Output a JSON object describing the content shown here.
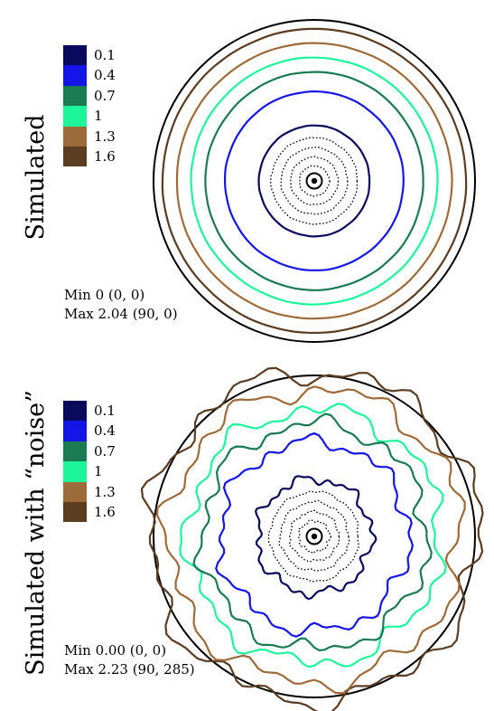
{
  "chart_data": [
    {
      "type": "polar-contour",
      "ylabel": "Simulated",
      "levels": [
        0.1,
        0.4,
        0.7,
        1,
        1.3,
        1.6
      ],
      "legend": [
        {
          "label": "0.1",
          "color": "#0a0a5c"
        },
        {
          "label": "0.4",
          "color": "#1515e8"
        },
        {
          "label": "0.7",
          "color": "#1a7a52"
        },
        {
          "label": "1",
          "color": "#1df59a"
        },
        {
          "label": "1.3",
          "color": "#9d6b3a"
        },
        {
          "label": "1.6",
          "color": "#5a3d22"
        }
      ],
      "theta_max": 90,
      "contour_radii_deg": {
        "0.1": 31,
        "0.4": 50,
        "0.7": 61,
        "1": 69,
        "1.3": 77,
        "1.6": 85
      },
      "min_text": "Min 0 (0, 0)",
      "max_text": "Max 2.04 (90, 0)",
      "noise": false
    },
    {
      "type": "polar-contour",
      "ylabel": "Simulated with “noise”",
      "levels": [
        0.1,
        0.4,
        0.7,
        1,
        1.3,
        1.6
      ],
      "legend": [
        {
          "label": "0.1",
          "color": "#0a0a5c"
        },
        {
          "label": "0.4",
          "color": "#1515e8"
        },
        {
          "label": "0.7",
          "color": "#1a7a52"
        },
        {
          "label": "1",
          "color": "#1df59a"
        },
        {
          "label": "1.3",
          "color": "#9d6b3a"
        },
        {
          "label": "1.6",
          "color": "#5a3d22"
        }
      ],
      "theta_max": 90,
      "contour_radii_deg": {
        "0.1": 32,
        "0.4": 53,
        "0.7": 63,
        "1": 71,
        "1.3": 82,
        "1.6": 92
      },
      "min_text": "Min 0.00 (0, 0)",
      "max_text": "Max 2.23 (90, 285)",
      "noise": true
    }
  ]
}
